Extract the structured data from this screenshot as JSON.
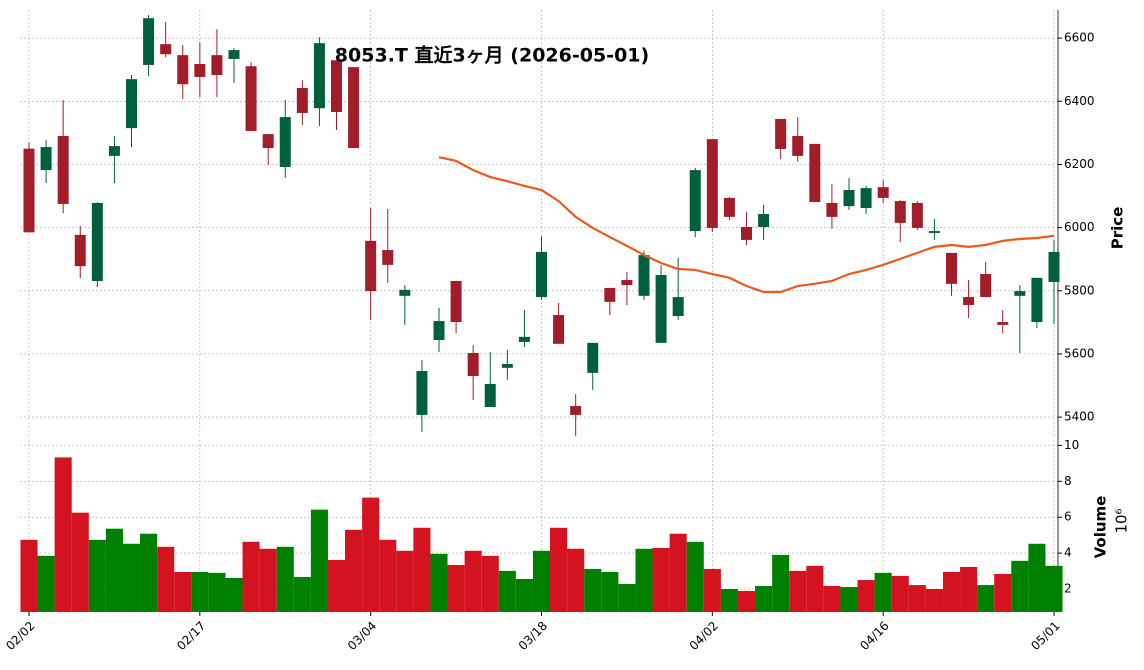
{
  "chart_data": {
    "type": "candlestick",
    "title": "8053.T  直近3ヶ月  (2026-05-01)",
    "categories": [
      "02/02",
      null,
      null,
      null,
      null,
      null,
      null,
      null,
      null,
      null,
      "02/17",
      null,
      null,
      null,
      null,
      null,
      null,
      null,
      null,
      null,
      "03/04",
      null,
      null,
      null,
      null,
      null,
      null,
      null,
      null,
      null,
      "03/18",
      null,
      null,
      null,
      null,
      null,
      null,
      null,
      null,
      null,
      "04/02",
      null,
      null,
      null,
      null,
      null,
      null,
      null,
      null,
      null,
      "04/16",
      null,
      null,
      null,
      null,
      null,
      null,
      null,
      null,
      null,
      "05/01"
    ],
    "open": [
      6250,
      6182,
      6290,
      5977,
      5831,
      6227,
      6315,
      6515,
      6581,
      6546,
      6518,
      6546,
      6534,
      6511,
      6296,
      6192,
      6442,
      6378,
      6530,
      6508,
      5958,
      5929,
      5784,
      5407,
      5644,
      5831,
      5603,
      5432,
      5556,
      5638,
      5780,
      5723,
      5435,
      5540,
      5809,
      5834,
      5784,
      5635,
      5720,
      5989,
      6280,
      6094,
      6002,
      6002,
      6344,
      6290,
      6265,
      6078,
      6068,
      6062,
      6128,
      6084,
      6078,
      5983,
      5920,
      5780,
      5853,
      5701,
      5784,
      5701,
      5828
    ],
    "high": [
      6270,
      6277,
      6404,
      6005,
      6080,
      6290,
      6483,
      6673,
      6651,
      6578,
      6587,
      6628,
      6568,
      6524,
      6296,
      6404,
      6467,
      6603,
      6530,
      6508,
      6062,
      6059,
      5818,
      5581,
      5746,
      5831,
      5628,
      5606,
      5613,
      5739,
      5973,
      5761,
      5473,
      5635,
      5809,
      5859,
      5926,
      5882,
      5904,
      6189,
      6280,
      6097,
      6049,
      6072,
      6344,
      6350,
      6265,
      6138,
      6157,
      6132,
      6151,
      6087,
      6084,
      6027,
      5920,
      5834,
      5891,
      5739,
      5818,
      5841,
      5961
    ],
    "low": [
      5985,
      6141,
      6046,
      5840,
      5812,
      6141,
      6255,
      6480,
      6540,
      6407,
      6413,
      6413,
      6458,
      6306,
      6198,
      6157,
      6325,
      6321,
      6309,
      6252,
      5708,
      5825,
      5692,
      5353,
      5606,
      5666,
      5454,
      5432,
      5518,
      5622,
      5771,
      5632,
      5340,
      5486,
      5723,
      5755,
      5771,
      5635,
      5708,
      5970,
      5986,
      6024,
      5945,
      5961,
      6217,
      6208,
      6081,
      5996,
      6056,
      6043,
      6078,
      5954,
      5992,
      5961,
      5784,
      5714,
      5780,
      5666,
      5603,
      5682,
      5695
    ],
    "close": [
      5985,
      6255,
      6075,
      5878,
      6078,
      6258,
      6470,
      6663,
      6549,
      6454,
      6477,
      6483,
      6562,
      6306,
      6252,
      6350,
      6363,
      6584,
      6366,
      6252,
      5799,
      5882,
      5803,
      5546,
      5704,
      5701,
      5530,
      5505,
      5568,
      5654,
      5923,
      5632,
      5407,
      5635,
      5765,
      5818,
      5913,
      5850,
      5780,
      6182,
      5999,
      6034,
      5961,
      6043,
      6249,
      6227,
      6081,
      6034,
      6119,
      6125,
      6094,
      6015,
      5999,
      5989,
      5822,
      5755,
      5780,
      5692,
      5799,
      5841,
      5923
    ],
    "up_color": "#00603c",
    "down_color": "#a11d29",
    "ylim": [
      5337,
      6689
    ],
    "yticks": [
      5400,
      5600,
      5800,
      6000,
      6200,
      6400,
      6600
    ],
    "ylabel": "Price",
    "grid": true,
    "moving_average": {
      "color": "#ea5a1c",
      "values": [
        null,
        null,
        null,
        null,
        null,
        null,
        null,
        null,
        null,
        null,
        null,
        null,
        null,
        null,
        null,
        null,
        null,
        null,
        null,
        null,
        null,
        null,
        null,
        null,
        6223,
        6211,
        6182,
        6160,
        6147,
        6132,
        6119,
        6084,
        6034,
        5999,
        5970,
        5942,
        5913,
        5888,
        5869,
        5866,
        5853,
        5841,
        5815,
        5796,
        5796,
        5815,
        5822,
        5831,
        5853,
        5866,
        5882,
        5901,
        5920,
        5939,
        5945,
        5939,
        5945,
        5958,
        5964,
        5967,
        5974
      ]
    },
    "volume": {
      "label": "Volume",
      "multiplier": "10⁶",
      "values": [
        4.74,
        3.85,
        9.33,
        6.25,
        4.74,
        5.36,
        4.52,
        5.08,
        4.35,
        2.95,
        2.95,
        2.9,
        2.62,
        4.63,
        4.24,
        4.35,
        2.67,
        6.42,
        3.62,
        5.3,
        7.09,
        4.74,
        4.13,
        5.41,
        3.96,
        3.34,
        4.13,
        3.85,
        3.01,
        2.56,
        4.13,
        5.41,
        4.24,
        3.12,
        2.95,
        2.28,
        4.24,
        4.29,
        5.08,
        4.63,
        3.12,
        2.0,
        1.89,
        2.17,
        3.9,
        3.01,
        3.29,
        2.17,
        2.11,
        2.5,
        2.9,
        2.73,
        2.22,
        2.0,
        2.95,
        3.23,
        2.22,
        2.84,
        3.57,
        4.52,
        3.29
      ],
      "colors": [
        "#d3131f",
        "#008000",
        "#d3131f",
        "#d3131f",
        "#008000",
        "#008000",
        "#008000",
        "#008000",
        "#d3131f",
        "#d3131f",
        "#008000",
        "#008000",
        "#008000",
        "#d3131f",
        "#d3131f",
        "#008000",
        "#008000",
        "#008000",
        "#d3131f",
        "#d3131f",
        "#d3131f",
        "#d3131f",
        "#d3131f",
        "#d3131f",
        "#008000",
        "#d3131f",
        "#d3131f",
        "#d3131f",
        "#008000",
        "#008000",
        "#008000",
        "#d3131f",
        "#d3131f",
        "#008000",
        "#008000",
        "#008000",
        "#008000",
        "#d3131f",
        "#d3131f",
        "#008000",
        "#d3131f",
        "#008000",
        "#d3131f",
        "#008000",
        "#008000",
        "#d3131f",
        "#d3131f",
        "#d3131f",
        "#008000",
        "#d3131f",
        "#008000",
        "#d3131f",
        "#d3131f",
        "#d3131f",
        "#d3131f",
        "#d3131f",
        "#008000",
        "#d3131f",
        "#008000",
        "#008000",
        "#008000"
      ],
      "ylim": [
        0.72,
        10.3
      ],
      "yticks": [
        2,
        4,
        6,
        8,
        10
      ]
    }
  }
}
